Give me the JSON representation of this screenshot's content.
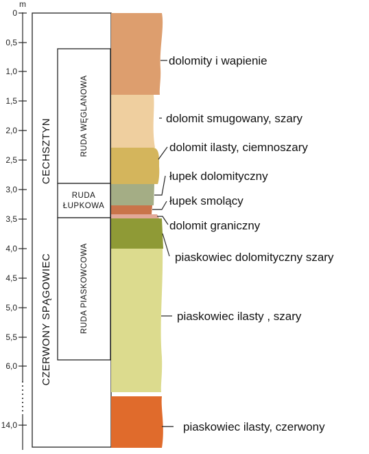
{
  "axis": {
    "unit": "m",
    "ticks": [
      "0",
      "0,5",
      "1,0",
      "1,5",
      "2,0",
      "2,5",
      "3,0",
      "3,5",
      "4,0",
      "4,5",
      "5,0",
      "5,5",
      "6,0",
      "14,0"
    ]
  },
  "formations": {
    "cechsztyn": "CECHSZTYN",
    "czerwony_spagowiec": "CZERWONY SPĄGOWIEC"
  },
  "ores": {
    "weglanowa": "RUDA WĘGLANOWA",
    "lupkowa_line1": "RUDA",
    "lupkowa_line2": "ŁUPKOWA",
    "piaskowcowa": "RUDA PIASKOWCOWA"
  },
  "layers": [
    {
      "label": "dolomity i wapienie",
      "color": "#dd9e6e"
    },
    {
      "label": "dolomit smugowany, szary",
      "color": "#efcf9f"
    },
    {
      "label": "dolomit ilasty, ciemnoszary",
      "color": "#d4b55c"
    },
    {
      "label": "łupek dolomityczny",
      "color": "#a4ad85"
    },
    {
      "label": "łupek smolący",
      "color": "#c9744a"
    },
    {
      "label": "dolomit graniczny",
      "color": "#e2a898"
    },
    {
      "label": "piaskowiec dolomityczny szary",
      "color": "#8f9a36"
    },
    {
      "label": "piaskowiec ilasty , szary",
      "color": "#dcdb8e"
    },
    {
      "label": "piaskowiec ilasty, czerwony",
      "color": "#e06b2c"
    }
  ]
}
